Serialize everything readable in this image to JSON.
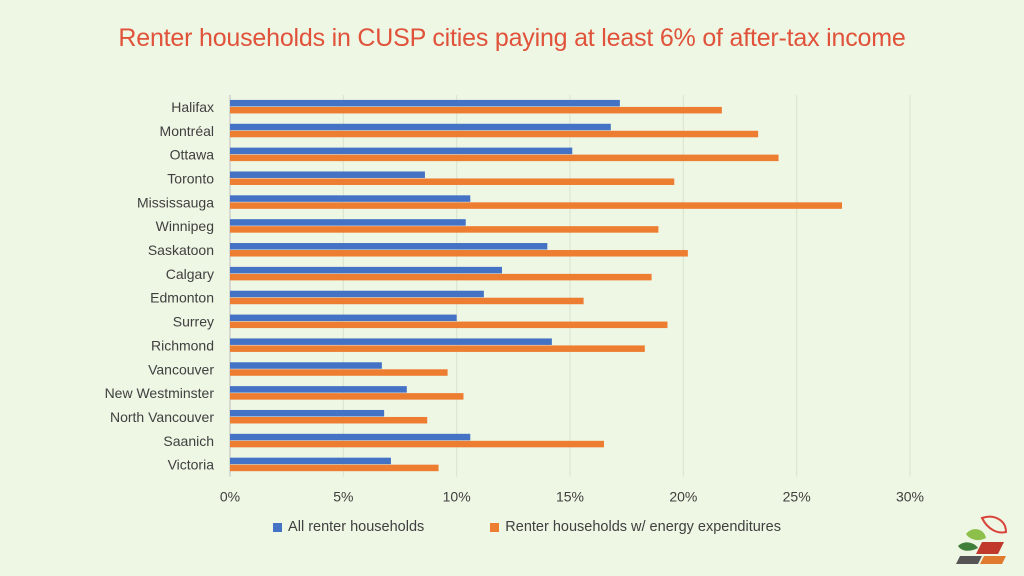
{
  "chart_data": {
    "type": "bar",
    "orientation": "horizontal",
    "title": "Renter households in CUSP cities paying at least 6% of after-tax income",
    "categories": [
      "Halifax",
      "Montréal",
      "Ottawa",
      "Toronto",
      "Mississauga",
      "Winnipeg",
      "Saskatoon",
      "Calgary",
      "Edmonton",
      "Surrey",
      "Richmond",
      "Vancouver",
      "New Westminster",
      "North Vancouver",
      "Saanich",
      "Victoria"
    ],
    "series": [
      {
        "name": "All renter households",
        "color": "#4472c4",
        "values": [
          17.2,
          16.8,
          15.1,
          8.6,
          10.6,
          10.4,
          14.0,
          12.0,
          11.2,
          10.0,
          14.2,
          6.7,
          7.8,
          6.8,
          10.6,
          7.1
        ]
      },
      {
        "name": "Renter households w/ energy expenditures",
        "color": "#ed7d31",
        "values": [
          21.7,
          23.3,
          24.2,
          19.6,
          27.0,
          18.9,
          20.2,
          18.6,
          15.6,
          19.3,
          18.3,
          9.6,
          10.3,
          8.7,
          16.5,
          9.2
        ]
      }
    ],
    "xlim": [
      0,
      30
    ],
    "xticks": [
      "0%",
      "5%",
      "10%",
      "15%",
      "20%",
      "25%",
      "30%"
    ],
    "grid": true,
    "legend_position": "bottom"
  },
  "logo": {
    "icon": "cusp-leaf-logo-icon"
  }
}
